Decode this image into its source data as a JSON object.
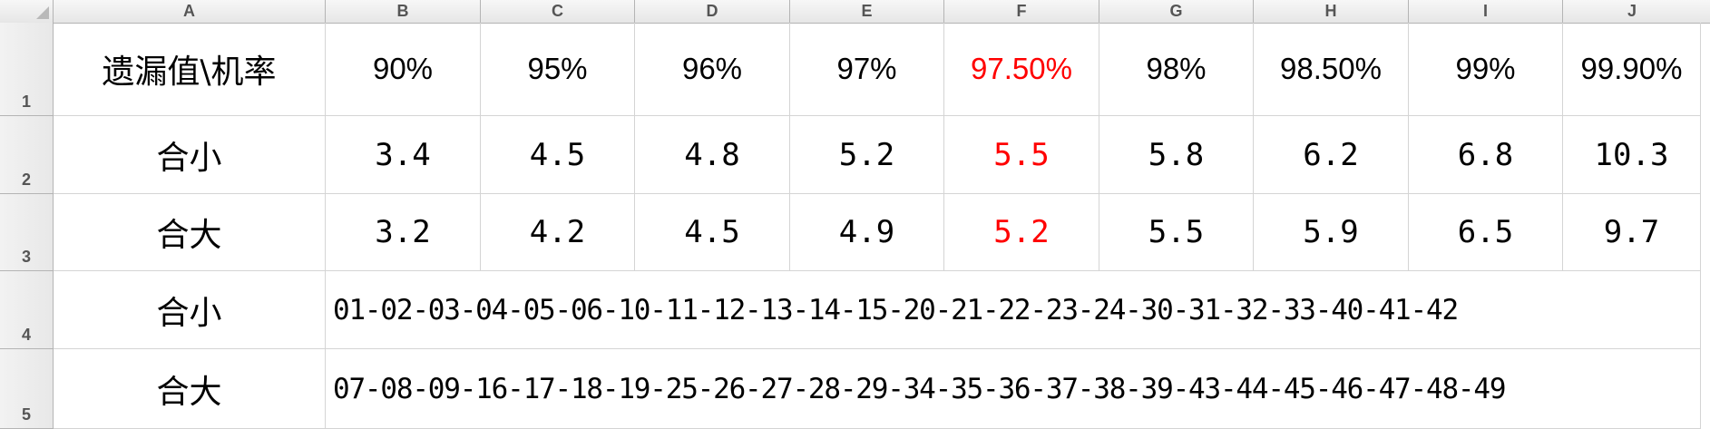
{
  "columns": [
    "A",
    "B",
    "C",
    "D",
    "E",
    "F",
    "G",
    "H",
    "I",
    "J"
  ],
  "rows": [
    "1",
    "2",
    "3",
    "4",
    "5"
  ],
  "header_row": {
    "label": "遗漏值\\机率",
    "values": [
      "90%",
      "95%",
      "96%",
      "97%",
      "97.50%",
      "98%",
      "98.50%",
      "99%",
      "99.90%"
    ]
  },
  "row2": {
    "label": "合小",
    "values": [
      "3.4",
      "4.5",
      "4.8",
      "5.2",
      "5.5",
      "5.8",
      "6.2",
      "6.8",
      "10.3"
    ]
  },
  "row3": {
    "label": "合大",
    "values": [
      "3.2",
      "4.2",
      "4.5",
      "4.9",
      "5.2",
      "5.5",
      "5.9",
      "6.5",
      "9.7"
    ]
  },
  "row4": {
    "label": "合小",
    "numbers": "01-02-03-04-05-06-10-11-12-13-14-15-20-21-22-23-24-30-31-32-33-40-41-42"
  },
  "row5": {
    "label": "合大",
    "numbers": "07-08-09-16-17-18-19-25-26-27-28-29-34-35-36-37-38-39-43-44-45-46-47-48-49"
  },
  "highlight_color": "#ff0000",
  "highlight_column": "F"
}
